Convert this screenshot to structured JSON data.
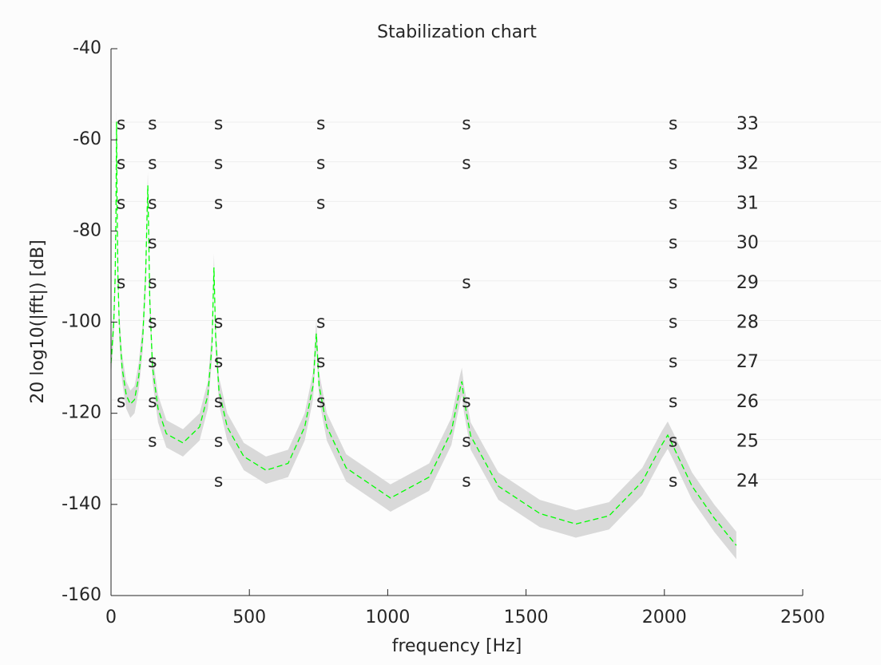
{
  "chart_data": {
    "type": "stabilization",
    "title": "Stabilization chart",
    "xlabel": "frequency [Hz]",
    "ylabel": "20 log10(|fft|) [dB]",
    "xlim": [
      0,
      2500
    ],
    "xticks": [
      0,
      500,
      1000,
      1500,
      2000,
      2500
    ],
    "ylim": [
      -160,
      -40
    ],
    "yticks": [
      -160,
      -140,
      -120,
      -100,
      -80,
      -60,
      -40
    ],
    "y2lim": [
      21.13,
      34.91
    ],
    "x": [
      0,
      10,
      15,
      18,
      20,
      22,
      25,
      30,
      40,
      55,
      70,
      85,
      100,
      115,
      125,
      130,
      133,
      136,
      140,
      150,
      170,
      200,
      260,
      320,
      350,
      365,
      372,
      378,
      390,
      420,
      480,
      560,
      640,
      700,
      730,
      742,
      752,
      780,
      850,
      1010,
      1150,
      1230,
      1260,
      1268,
      1276,
      1300,
      1400,
      1550,
      1680,
      1800,
      1920,
      1990,
      2012,
      2030,
      2100,
      2180,
      2260
    ],
    "band": {
      "color": "#d9d9d9",
      "upper": [
        -106,
        -97,
        -87,
        -72,
        -53,
        -72,
        -87,
        -98,
        -107,
        -113,
        -115,
        -114,
        -109,
        -100,
        -87,
        -74,
        -67,
        -77,
        -92,
        -107,
        -116,
        -121.5,
        -123.5,
        -120,
        -113,
        -102,
        -85,
        -100,
        -112,
        -120,
        -126.5,
        -129.5,
        -128,
        -120,
        -111,
        -99.5,
        -111,
        -120,
        -129,
        -135.6,
        -131,
        -121,
        -112,
        -110,
        -114,
        -122,
        -133,
        -139,
        -141.3,
        -139.5,
        -132,
        -124,
        -121.8,
        -124,
        -133,
        -140,
        -146
      ],
      "lower": [
        -112,
        -103,
        -93,
        -78,
        -59,
        -78,
        -93,
        -104,
        -113,
        -119,
        -121,
        -120,
        -115,
        -106,
        -93,
        -80,
        -73,
        -83,
        -98,
        -113,
        -122,
        -127.5,
        -129.5,
        -126,
        -119,
        -108,
        -91,
        -106,
        -118,
        -126,
        -132.5,
        -135.5,
        -134,
        -126,
        -117,
        -105.5,
        -117,
        -126,
        -135,
        -141.6,
        -137,
        -127,
        -118,
        -116,
        -120,
        -128,
        -139,
        -145,
        -147.3,
        -145.5,
        -138,
        -130,
        -127.8,
        -130,
        -139,
        -146,
        -152
      ]
    },
    "mean": {
      "color": "#00ff00",
      "values": [
        -109,
        -100,
        -90,
        -75,
        -56,
        -75,
        -90,
        -101,
        -110,
        -116,
        -118,
        -117,
        -112,
        -103,
        -90,
        -77,
        -70,
        -80,
        -95,
        -110,
        -119,
        -124.5,
        -126.5,
        -123,
        -116,
        -105,
        -88,
        -103,
        -115,
        -123,
        -129.5,
        -132.5,
        -131,
        -123,
        -114,
        -102.5,
        -114,
        -123,
        -132,
        -138.6,
        -134,
        -124,
        -115,
        -113,
        -117,
        -125,
        -136,
        -142,
        -144.3,
        -142.5,
        -135,
        -127,
        -124.8,
        -127,
        -136,
        -143,
        -149
      ]
    },
    "marker": "s",
    "orders": [
      33,
      32,
      31,
      30,
      29,
      28,
      27,
      26,
      25,
      24
    ],
    "stable_frequencies": [
      [
        20,
        133,
        372,
        742,
        1268,
        2015
      ],
      [
        20,
        133,
        372,
        742,
        1268,
        2015
      ],
      [
        20,
        133,
        372,
        742,
        2015
      ],
      [
        133,
        2015
      ],
      [
        20,
        133,
        1268,
        2015
      ],
      [
        133,
        372,
        742,
        2015
      ],
      [
        133,
        372,
        742,
        2015
      ],
      [
        20,
        133,
        372,
        742,
        1268,
        2015
      ],
      [
        133,
        372,
        1268,
        2015
      ],
      [
        372,
        1268,
        2015
      ]
    ]
  }
}
